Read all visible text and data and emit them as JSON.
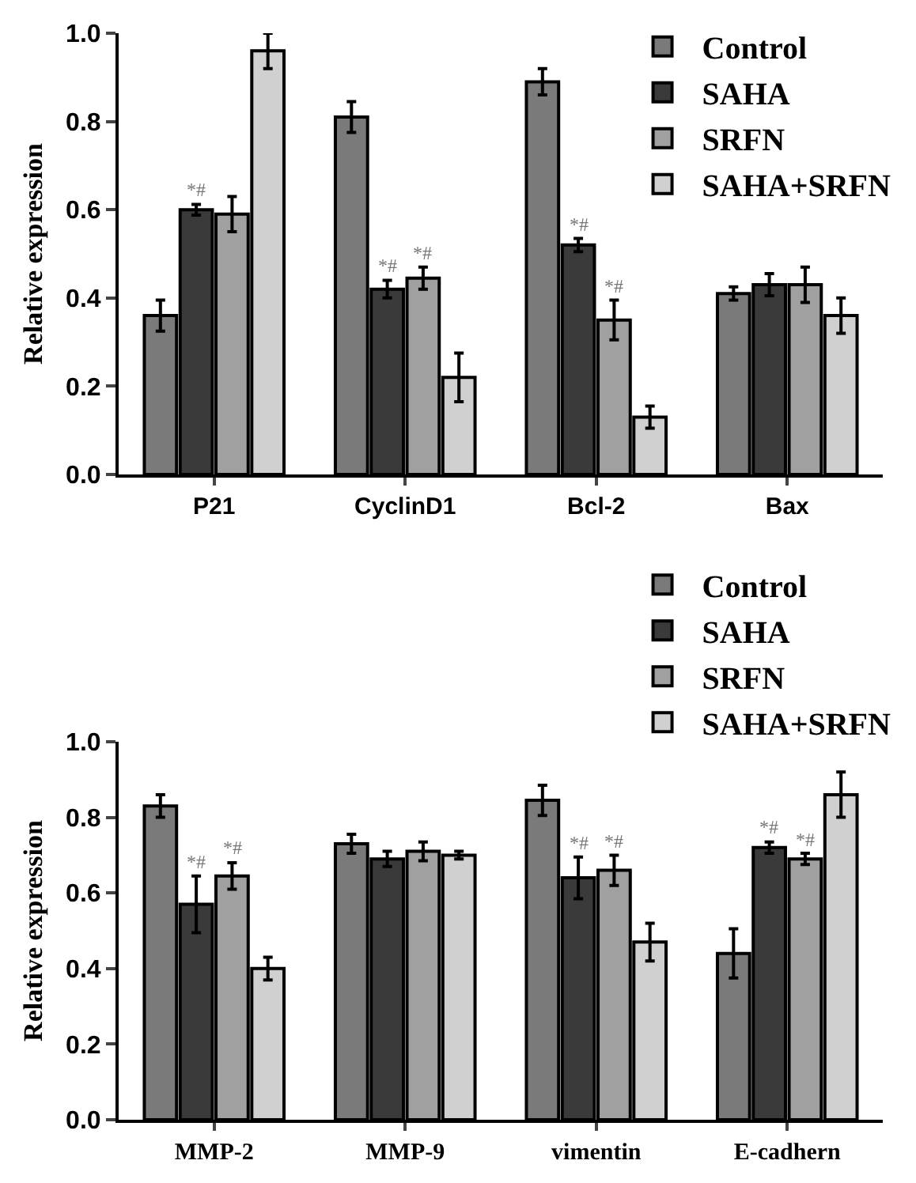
{
  "chart_data": [
    {
      "type": "bar",
      "ylabel": "Relative expression",
      "categories": [
        "P21",
        "CyclinD1",
        "Bcl-2",
        "Bax"
      ],
      "series": [
        {
          "name": "Control",
          "color": "#7a7a7a",
          "values": [
            0.36,
            0.81,
            0.89,
            0.41
          ],
          "errors": [
            0.035,
            0.035,
            0.03,
            0.015
          ]
        },
        {
          "name": "SAHA",
          "color": "#3a3a3a",
          "values": [
            0.6,
            0.42,
            0.52,
            0.43
          ],
          "errors": [
            0.012,
            0.02,
            0.015,
            0.025
          ]
        },
        {
          "name": "SRFN",
          "color": "#a0a0a0",
          "values": [
            0.59,
            0.445,
            0.35,
            0.43
          ],
          "errors": [
            0.04,
            0.025,
            0.045,
            0.04
          ]
        },
        {
          "name": "SAHA+SRFN",
          "color": "#d0d0d0",
          "values": [
            0.96,
            0.22,
            0.13,
            0.36
          ],
          "errors": [
            0.04,
            0.055,
            0.025,
            0.04
          ]
        }
      ],
      "ylim": [
        0,
        1.0
      ],
      "yticks": [
        {
          "value": 0,
          "label": "0.0"
        },
        {
          "value": 0.2,
          "label": "0.2"
        },
        {
          "value": 0.4,
          "label": "0.4"
        },
        {
          "value": 0.6,
          "label": "0.6"
        },
        {
          "value": 0.8,
          "label": "0.8"
        },
        {
          "value": 1.0,
          "label": "1.0"
        }
      ],
      "annotations": [
        {
          "text": "*#",
          "x": "P21",
          "y": 0.6
        },
        {
          "text": "*#",
          "x": "CyclinD1",
          "y": 0.42
        },
        {
          "text": "*#",
          "x": "CyclinD1",
          "y": 0.445
        },
        {
          "text": "*#",
          "x": "Bcl-2",
          "y": 0.52
        },
        {
          "text": "*#",
          "x": "Bcl-2",
          "y": 0.35
        }
      ],
      "grid": false,
      "legend": "top right"
    },
    {
      "type": "bar",
      "ylabel": "Relative expression",
      "categories": [
        "MMP-2",
        "MMP-9",
        "vimentin",
        "E-cadhern"
      ],
      "series": [
        {
          "name": "Control",
          "color": "#7a7a7a",
          "values": [
            0.83,
            0.73,
            0.845,
            0.44
          ],
          "errors": [
            0.03,
            0.025,
            0.04,
            0.065
          ]
        },
        {
          "name": "SAHA",
          "color": "#3a3a3a",
          "values": [
            0.57,
            0.69,
            0.64,
            0.72
          ],
          "errors": [
            0.075,
            0.02,
            0.055,
            0.015
          ]
        },
        {
          "name": "SRFN",
          "color": "#a0a0a0",
          "values": [
            0.645,
            0.71,
            0.66,
            0.69
          ],
          "errors": [
            0.035,
            0.025,
            0.04,
            0.015
          ]
        },
        {
          "name": "SAHA+SRFN",
          "color": "#d0d0d0",
          "values": [
            0.4,
            0.7,
            0.47,
            0.86
          ],
          "errors": [
            0.03,
            0.01,
            0.05,
            0.06
          ]
        }
      ],
      "ylim": [
        0,
        1.0
      ],
      "yticks": [
        {
          "value": 0,
          "label": "0.0"
        },
        {
          "value": 0.2,
          "label": "0.2"
        },
        {
          "value": 0.4,
          "label": "0.4"
        },
        {
          "value": 0.6,
          "label": "0.6"
        },
        {
          "value": 0.8,
          "label": "0.8"
        },
        {
          "value": 1.0,
          "label": "1.0"
        }
      ],
      "annotations": [
        {
          "text": "*#",
          "x": "MMP-2",
          "y": 0.57
        },
        {
          "text": "*#",
          "x": "MMP-2",
          "y": 0.645
        },
        {
          "text": "*#",
          "x": "vimentin",
          "y": 0.64
        },
        {
          "text": "*#",
          "x": "vimentin",
          "y": 0.66
        },
        {
          "text": "*#",
          "x": "E-cadhern",
          "y": 0.72
        },
        {
          "text": "*#",
          "x": "E-cadhern",
          "y": 0.69
        }
      ],
      "grid": false,
      "legend": "top right"
    }
  ]
}
